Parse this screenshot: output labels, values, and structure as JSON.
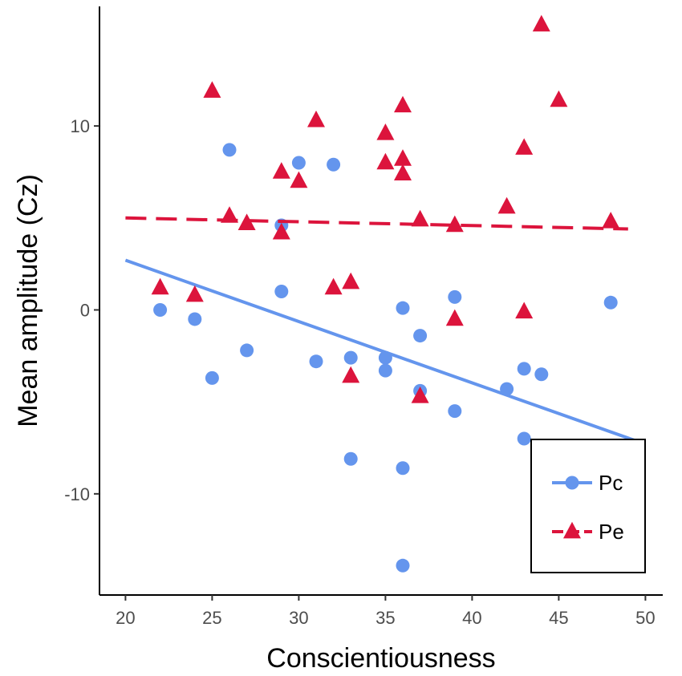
{
  "chart_data": {
    "type": "scatter",
    "title": "",
    "xlabel": "Conscientiousness",
    "ylabel": "Mean amplitude (Cz)",
    "xlim": [
      18.5,
      51
    ],
    "ylim": [
      -15.5,
      16.5
    ],
    "xticks": [
      20,
      25,
      30,
      35,
      40,
      45,
      50
    ],
    "yticks": [
      -10,
      0,
      10
    ],
    "grid": false,
    "legend_position": "bottom-right",
    "series": [
      {
        "name": "Pc",
        "marker": "circle",
        "color": "#6495ED",
        "line_style": "solid",
        "points": [
          {
            "x": 22,
            "y": 0.0
          },
          {
            "x": 24,
            "y": -0.5
          },
          {
            "x": 25,
            "y": -3.7
          },
          {
            "x": 26,
            "y": 8.7
          },
          {
            "x": 27,
            "y": -2.2
          },
          {
            "x": 29,
            "y": 4.6
          },
          {
            "x": 29,
            "y": 1.0
          },
          {
            "x": 30,
            "y": 8.0
          },
          {
            "x": 31,
            "y": -2.8
          },
          {
            "x": 32,
            "y": 7.9
          },
          {
            "x": 33,
            "y": -2.6
          },
          {
            "x": 33,
            "y": -8.1
          },
          {
            "x": 35,
            "y": -2.6
          },
          {
            "x": 35,
            "y": -3.3
          },
          {
            "x": 36,
            "y": 0.1
          },
          {
            "x": 36,
            "y": -8.6
          },
          {
            "x": 36,
            "y": -13.9
          },
          {
            "x": 37,
            "y": -1.4
          },
          {
            "x": 37,
            "y": -4.4
          },
          {
            "x": 39,
            "y": 0.7
          },
          {
            "x": 39,
            "y": -5.5
          },
          {
            "x": 42,
            "y": -4.3
          },
          {
            "x": 43,
            "y": -3.2
          },
          {
            "x": 43,
            "y": -7.0
          },
          {
            "x": 44,
            "y": -3.5
          },
          {
            "x": 48,
            "y": 0.4
          }
        ],
        "trend": {
          "x": [
            20,
            50
          ],
          "y": [
            2.7,
            -7.3
          ]
        }
      },
      {
        "name": "Pe",
        "marker": "triangle",
        "color": "#DC143C",
        "line_style": "dashed",
        "points": [
          {
            "x": 22,
            "y": 1.2
          },
          {
            "x": 24,
            "y": 0.8
          },
          {
            "x": 25,
            "y": 11.9
          },
          {
            "x": 26,
            "y": 5.1
          },
          {
            "x": 27,
            "y": 4.7
          },
          {
            "x": 29,
            "y": 7.5
          },
          {
            "x": 29,
            "y": 4.2
          },
          {
            "x": 30,
            "y": 7.0
          },
          {
            "x": 31,
            "y": 10.3
          },
          {
            "x": 32,
            "y": 1.2
          },
          {
            "x": 33,
            "y": 1.5
          },
          {
            "x": 33,
            "y": -3.6
          },
          {
            "x": 35,
            "y": 9.6
          },
          {
            "x": 35,
            "y": 8.0
          },
          {
            "x": 36,
            "y": 11.1
          },
          {
            "x": 36,
            "y": 8.2
          },
          {
            "x": 36,
            "y": 7.4
          },
          {
            "x": 37,
            "y": 4.9
          },
          {
            "x": 37,
            "y": -4.7
          },
          {
            "x": 39,
            "y": 4.6
          },
          {
            "x": 39,
            "y": -0.5
          },
          {
            "x": 42,
            "y": 5.6
          },
          {
            "x": 43,
            "y": 8.8
          },
          {
            "x": 43,
            "y": -0.1
          },
          {
            "x": 44,
            "y": 15.5
          },
          {
            "x": 45,
            "y": 11.4
          },
          {
            "x": 48,
            "y": 4.8
          }
        ],
        "trend": {
          "x": [
            20,
            49
          ],
          "y": [
            5.0,
            4.4
          ]
        }
      }
    ]
  }
}
